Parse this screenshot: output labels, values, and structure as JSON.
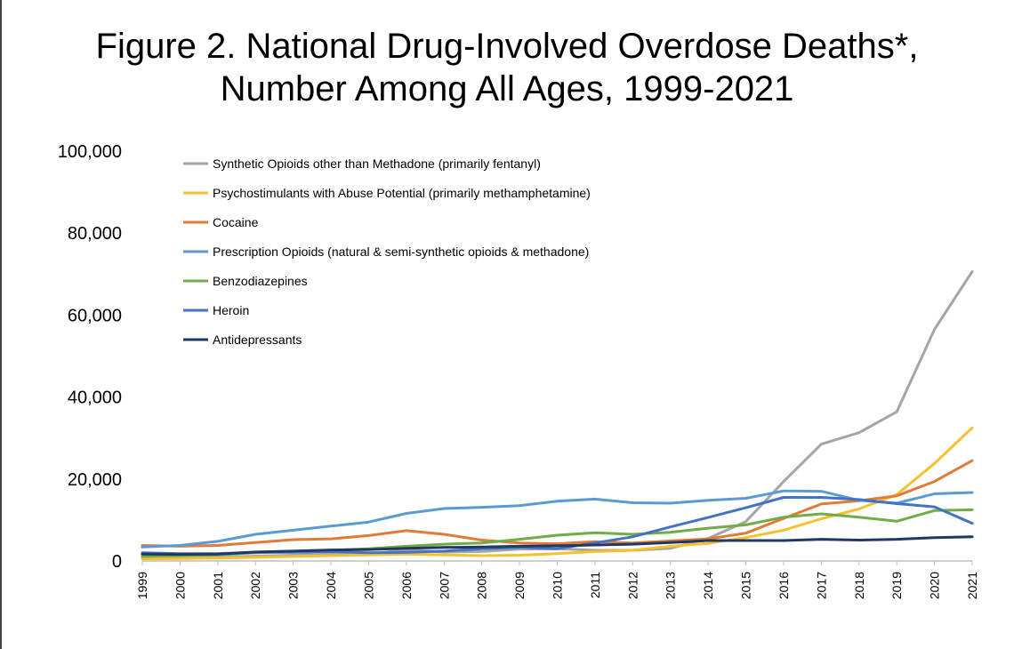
{
  "chart_data": {
    "type": "line",
    "title": "Figure 2. National Drug-Involved Overdose Deaths*,",
    "subtitle": "Number Among All Ages, 1999-2021",
    "xlabel": "",
    "ylabel": "",
    "ylim": [
      0,
      100000
    ],
    "yticks": [
      "0",
      "20,000",
      "40,000",
      "60,000",
      "80,000",
      "100,000"
    ],
    "grid": false,
    "legend": "top-left",
    "x": [
      "1999",
      "2000",
      "2001",
      "2002",
      "2003",
      "2004",
      "2005",
      "2006",
      "2007",
      "2008",
      "2009",
      "2010",
      "2011",
      "2012",
      "2013",
      "2014",
      "2015",
      "2016",
      "2017",
      "2018",
      "2019",
      "2020",
      "2021"
    ],
    "series": [
      {
        "name": "Synthetic Opioids other than Methadone (primarily fentanyl)",
        "color": "#a5a5a5",
        "values": [
          700,
          800,
          900,
          1200,
          1400,
          1700,
          1700,
          2700,
          2200,
          2300,
          2900,
          3000,
          2600,
          2600,
          3100,
          5500,
          9600,
          19400,
          28500,
          31300,
          36400,
          56500,
          70600
        ]
      },
      {
        "name": "Psychostimulants with Abuse Potential (primarily methamphetamine)",
        "color": "#f5c12e",
        "values": [
          500,
          600,
          700,
          900,
          1100,
          1300,
          1500,
          1700,
          1500,
          1300,
          1400,
          1800,
          2300,
          2600,
          3600,
          4300,
          5700,
          7500,
          10300,
          12700,
          16200,
          23800,
          32500
        ]
      },
      {
        "name": "Cocaine",
        "color": "#e07b39",
        "values": [
          3800,
          3600,
          3800,
          4500,
          5200,
          5400,
          6200,
          7400,
          6500,
          5100,
          4400,
          4200,
          4700,
          4400,
          4900,
          5400,
          6800,
          10400,
          13900,
          14700,
          15900,
          19400,
          24500
        ]
      },
      {
        "name": "Prescription Opioids (natural & semi-synthetic opioids & methadone)",
        "color": "#5b9bd5",
        "values": [
          3400,
          3800,
          4800,
          6500,
          7500,
          8500,
          9500,
          11600,
          12800,
          13100,
          13500,
          14600,
          15100,
          14200,
          14100,
          14800,
          15300,
          17100,
          17000,
          14800,
          14100,
          16400,
          16700
        ]
      },
      {
        "name": "Benzodiazepines",
        "color": "#70ad47",
        "values": [
          1100,
          1300,
          1500,
          2000,
          2300,
          2600,
          3000,
          3600,
          4100,
          4400,
          5300,
          6300,
          6900,
          6500,
          7000,
          8000,
          8800,
          10700,
          11500,
          10700,
          9700,
          12300,
          12500
        ]
      },
      {
        "name": "Heroin",
        "color": "#4472c4",
        "values": [
          2000,
          1800,
          1800,
          2100,
          2100,
          2300,
          2000,
          2100,
          2400,
          3000,
          3300,
          3000,
          4400,
          5900,
          8300,
          10600,
          13000,
          15500,
          15500,
          15000,
          14000,
          13200,
          9200
        ]
      },
      {
        "name": "Antidepressants",
        "color": "#203864",
        "values": [
          1700,
          1600,
          1700,
          2200,
          2400,
          2700,
          2800,
          3100,
          3300,
          3400,
          3600,
          3700,
          3900,
          4100,
          4500,
          5000,
          5000,
          5000,
          5300,
          5100,
          5300,
          5700,
          5900
        ]
      }
    ]
  }
}
